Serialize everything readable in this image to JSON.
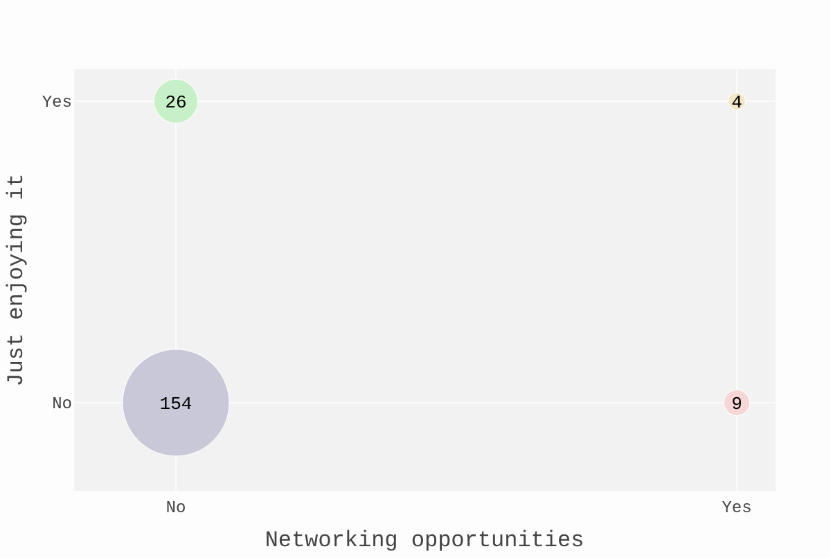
{
  "chart_data": {
    "type": "scatter",
    "title": "",
    "xlabel": "Networking opportunities",
    "ylabel": "Just enjoying it",
    "x_categories": [
      "No",
      "Yes"
    ],
    "y_categories": [
      "No",
      "Yes"
    ],
    "grid": true,
    "points": [
      {
        "x": "No",
        "y": "No",
        "count": 154,
        "color": "#c9c8d8"
      },
      {
        "x": "No",
        "y": "Yes",
        "count": 26,
        "color": "#c8f0c8"
      },
      {
        "x": "Yes",
        "y": "No",
        "count": 9,
        "color": "#f7d6d6"
      },
      {
        "x": "Yes",
        "y": "Yes",
        "count": 4,
        "color": "#f4e6c8"
      }
    ],
    "colors": {
      "plot_background": "#f2f2f2",
      "grid": "#ffffff",
      "text": "#444444",
      "label": "#000000"
    }
  }
}
